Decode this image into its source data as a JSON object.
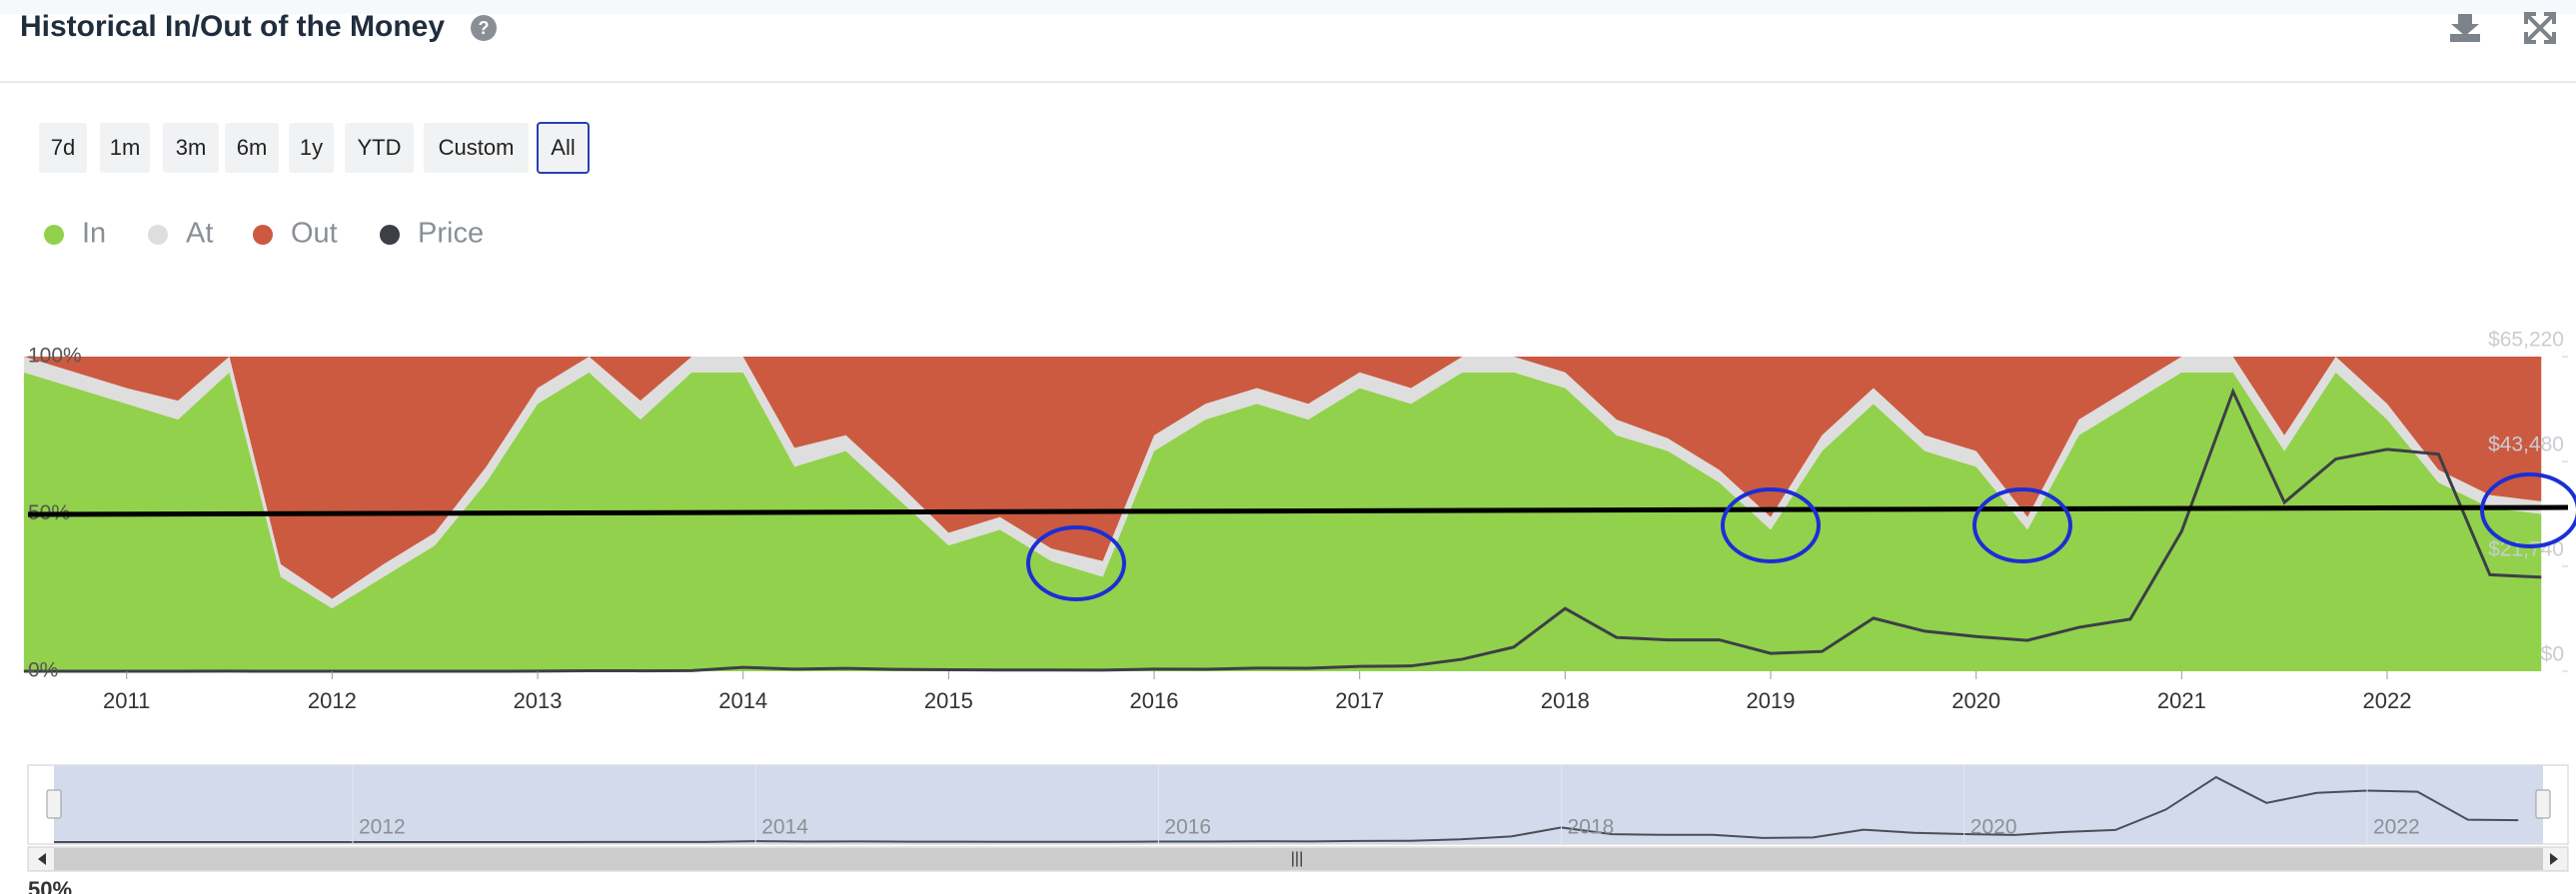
{
  "header": {
    "title": "Historical In/Out of the Money"
  },
  "range_buttons": [
    "7d",
    "1m",
    "3m",
    "6m",
    "1y",
    "YTD",
    "Custom",
    "All"
  ],
  "chart_data": {
    "type": "stacked-area",
    "x": [
      2010.5,
      2010.75,
      2011.0,
      2011.25,
      2011.5,
      2011.75,
      2012.0,
      2012.25,
      2012.5,
      2012.75,
      2013.0,
      2013.25,
      2013.5,
      2013.75,
      2014.0,
      2014.25,
      2014.5,
      2014.75,
      2015.0,
      2015.25,
      2015.5,
      2015.75,
      2016.0,
      2016.25,
      2016.5,
      2016.75,
      2017.0,
      2017.25,
      2017.5,
      2017.75,
      2018.0,
      2018.25,
      2018.5,
      2018.75,
      2019.0,
      2019.25,
      2019.5,
      2019.75,
      2020.0,
      2020.25,
      2020.5,
      2020.75,
      2021.0,
      2021.25,
      2021.5,
      2021.75,
      2022.0,
      2022.25,
      2022.5,
      2022.75
    ],
    "series": [
      {
        "name": "In",
        "color": "#92d14c",
        "values": [
          95,
          90,
          85,
          80,
          95,
          30,
          20,
          30,
          40,
          60,
          85,
          95,
          80,
          95,
          95,
          65,
          70,
          55,
          40,
          45,
          35,
          30,
          70,
          80,
          85,
          80,
          90,
          85,
          95,
          95,
          90,
          75,
          70,
          60,
          45,
          70,
          85,
          70,
          65,
          45,
          75,
          85,
          95,
          95,
          70,
          95,
          80,
          60,
          52,
          50
        ]
      },
      {
        "name": "At",
        "color": "#dedede",
        "values": [
          5,
          5,
          5,
          6,
          5,
          4,
          3,
          4,
          4,
          5,
          5,
          5,
          6,
          5,
          5,
          6,
          5,
          5,
          4,
          4,
          4,
          5,
          5,
          5,
          5,
          5,
          5,
          5,
          5,
          5,
          5,
          5,
          4,
          4,
          4,
          5,
          5,
          5,
          5,
          4,
          5,
          5,
          5,
          5,
          5,
          5,
          5,
          4,
          4,
          4
        ]
      },
      {
        "name": "Out",
        "color": "#cc5a41",
        "values": [
          0,
          5,
          10,
          14,
          0,
          66,
          77,
          66,
          56,
          35,
          10,
          0,
          14,
          0,
          0,
          29,
          25,
          40,
          56,
          51,
          61,
          65,
          25,
          15,
          10,
          15,
          5,
          10,
          0,
          0,
          5,
          20,
          26,
          36,
          51,
          25,
          10,
          25,
          30,
          51,
          20,
          10,
          0,
          0,
          25,
          0,
          15,
          36,
          44,
          46
        ]
      },
      {
        "name": "Price",
        "color": "#3c3f46",
        "axis": "y2",
        "values": [
          0.07,
          0.2,
          0.3,
          0.8,
          15,
          5,
          5,
          5,
          7,
          12,
          13,
          100,
          90,
          140,
          800,
          450,
          600,
          380,
          300,
          250,
          270,
          230,
          430,
          420,
          650,
          610,
          1000,
          1100,
          2500,
          5000,
          13000,
          7000,
          6500,
          6500,
          3700,
          4100,
          11000,
          8300,
          7200,
          6400,
          9100,
          10800,
          29000,
          58000,
          35000,
          44000,
          46000,
          45000,
          20000,
          19500
        ]
      }
    ],
    "xlim": [
      2010.52,
      2022.88
    ],
    "xticks": [
      2011,
      2012,
      2013,
      2014,
      2015,
      2016,
      2017,
      2018,
      2019,
      2020,
      2021,
      2022
    ],
    "ylim": [
      0,
      100
    ],
    "yticks": [
      {
        "value": 0,
        "label": "0%"
      },
      {
        "value": 50,
        "label": "50%"
      },
      {
        "value": 100,
        "label": "100%"
      }
    ],
    "y2lim": [
      0,
      65220
    ],
    "y2ticks": [
      {
        "value": 0,
        "label": "$0"
      },
      {
        "value": 21740,
        "label": "$21,740"
      },
      {
        "value": 43480,
        "label": "$43,480"
      },
      {
        "value": 65220,
        "label": "$65,220"
      }
    ],
    "navigator": {
      "ticks": [
        2012,
        2014,
        2016,
        2018,
        2020,
        2022
      ],
      "footer": "50%"
    }
  }
}
